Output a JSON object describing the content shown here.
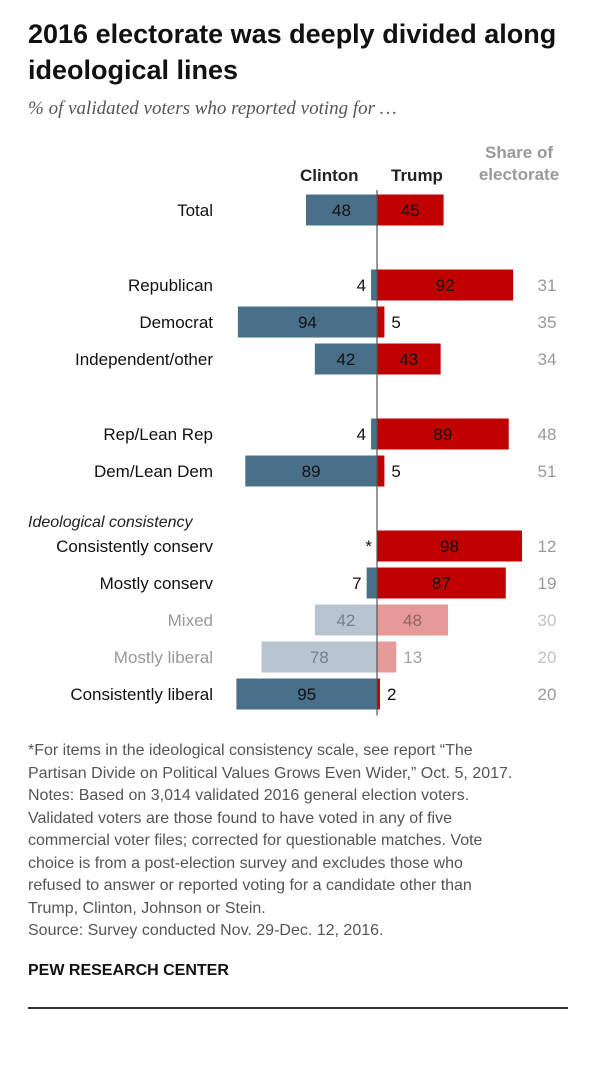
{
  "title": "2016 electorate was deeply divided along ideological lines",
  "subtitle": "% of validated voters who reported voting for …",
  "columns": {
    "clinton": "Clinton",
    "trump": "Trump",
    "share_line1": "Share of",
    "share_line2": "electorate"
  },
  "colors": {
    "clinton": "#4a6f89",
    "trump": "#c00000",
    "share_text": "#999999"
  },
  "chart_data": {
    "type": "bar",
    "title": "2016 electorate was deeply divided along ideological lines",
    "subtitle": "% of validated voters who reported voting for …",
    "xlim": [
      -100,
      100
    ],
    "series": [
      {
        "name": "Clinton",
        "direction": "left"
      },
      {
        "name": "Trump",
        "direction": "right"
      },
      {
        "name": "Share of electorate",
        "display": "text"
      }
    ],
    "section_label": "Ideological consistency",
    "rows": [
      {
        "label": "Total",
        "clinton": 48,
        "trump": 45,
        "share": null,
        "group": 0
      },
      {
        "label": "Republican",
        "clinton": 4,
        "trump": 92,
        "share": "31",
        "group": 1
      },
      {
        "label": "Democrat",
        "clinton": 94,
        "trump": 5,
        "share": "35",
        "group": 1
      },
      {
        "label": "Independent/other",
        "clinton": 42,
        "trump": 43,
        "share": "34",
        "group": 1
      },
      {
        "label": "Rep/Lean Rep",
        "clinton": 4,
        "trump": 89,
        "share": "48",
        "group": 2
      },
      {
        "label": "Dem/Lean Dem",
        "clinton": 89,
        "trump": 5,
        "share": "51",
        "group": 2
      },
      {
        "label": "Consistently conserv",
        "clinton": 0,
        "clinton_label": "*",
        "trump": 98,
        "share": "12",
        "group": 3
      },
      {
        "label": "Mostly conserv",
        "clinton": 7,
        "trump": 87,
        "share": "19",
        "group": 3
      },
      {
        "label": "Mixed",
        "clinton": 42,
        "trump": 48,
        "share": "30",
        "group": 3,
        "faded": true
      },
      {
        "label": "Mostly liberal",
        "clinton": 78,
        "trump": 13,
        "share": "20",
        "group": 3,
        "faded": true
      },
      {
        "label": "Consistently liberal",
        "clinton": 95,
        "trump": 2,
        "share": "20",
        "group": 3
      }
    ]
  },
  "notes": [
    "*For items in the ideological consistency scale, see report “The",
    "Partisan Divide on Political Values Grows Even Wider,” Oct. 5, 2017.",
    "Notes: Based on 3,014 validated 2016 general election voters.",
    "Validated voters are those found to have voted in any of five",
    "commercial voter files; corrected for questionable matches. Vote",
    "choice is from a post-election survey and excludes those who",
    "refused to answer or reported voting for a candidate other than",
    "Trump, Clinton, Johnson or Stein.",
    "Source: Survey conducted Nov. 29-Dec. 12, 2016."
  ],
  "brand": "PEW RESEARCH CENTER"
}
